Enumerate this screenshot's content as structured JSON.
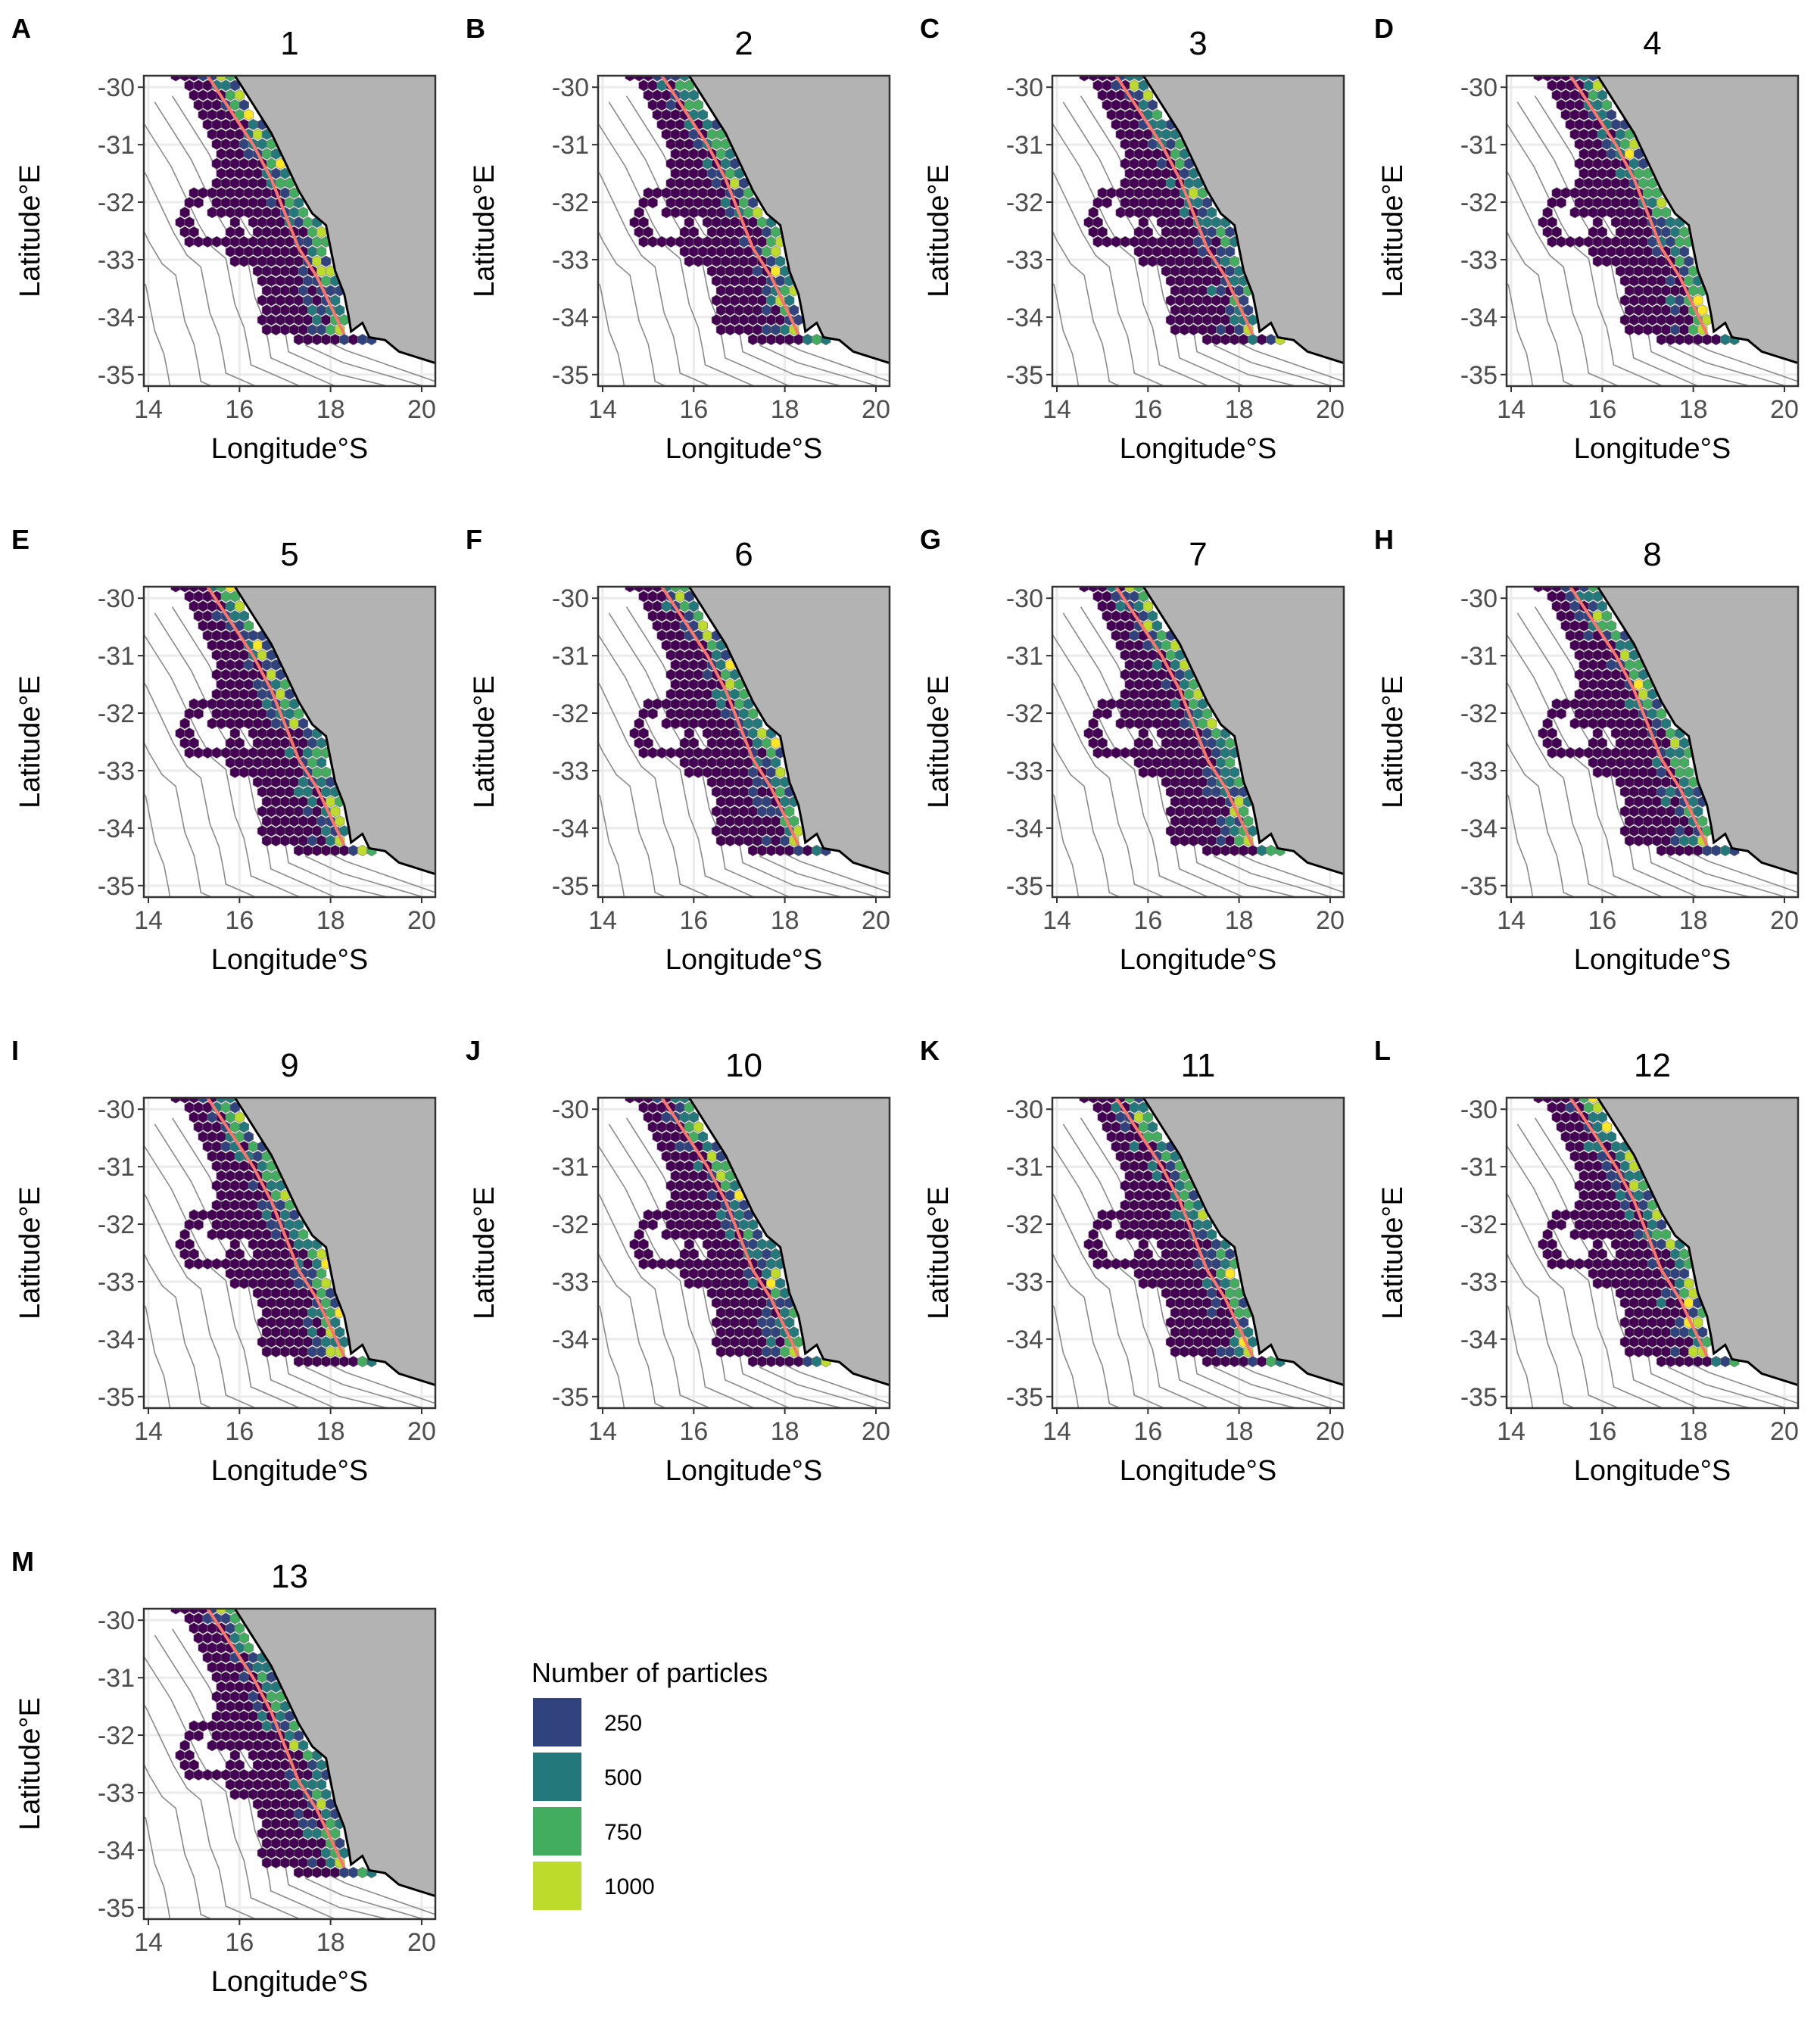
{
  "figure": {
    "x_axis_title": "Longitude°S",
    "y_axis_title": "Latitude°E",
    "x_ticks": [
      14,
      16,
      18,
      20
    ],
    "x_tick_labels": [
      "14",
      "16",
      "18",
      "20"
    ],
    "y_ticks": [
      -30,
      -31,
      -32,
      -33,
      -34,
      -35
    ],
    "y_tick_labels": [
      "-30",
      "-31",
      "-32",
      "-33",
      "-34",
      "-35"
    ],
    "x_range": [
      13.9,
      20.3
    ],
    "y_range": [
      -35.2,
      -29.8
    ],
    "colors": {
      "land": "#b3b3b3",
      "coast": "#000000",
      "red_line": "#f8766d",
      "contour": "#8a8a8a",
      "grid": "#ebebeb",
      "hex_background": "#7a7a7a",
      "panel_border": "#333333"
    },
    "panels": [
      {
        "letter": "A",
        "title": "1"
      },
      {
        "letter": "B",
        "title": "2"
      },
      {
        "letter": "C",
        "title": "3"
      },
      {
        "letter": "D",
        "title": "4"
      },
      {
        "letter": "E",
        "title": "5"
      },
      {
        "letter": "F",
        "title": "6"
      },
      {
        "letter": "G",
        "title": "7"
      },
      {
        "letter": "H",
        "title": "8"
      },
      {
        "letter": "I",
        "title": "9"
      },
      {
        "letter": "J",
        "title": "10"
      },
      {
        "letter": "K",
        "title": "11"
      },
      {
        "letter": "L",
        "title": "12"
      },
      {
        "letter": "M",
        "title": "13"
      }
    ],
    "legend": {
      "title": "Number of particles",
      "entries": [
        {
          "label": "250",
          "color": "#31437f"
        },
        {
          "label": "500",
          "color": "#22787a"
        },
        {
          "label": "750",
          "color": "#43ad5f"
        },
        {
          "label": "1000",
          "color": "#bcdb2a"
        }
      ]
    }
  }
}
